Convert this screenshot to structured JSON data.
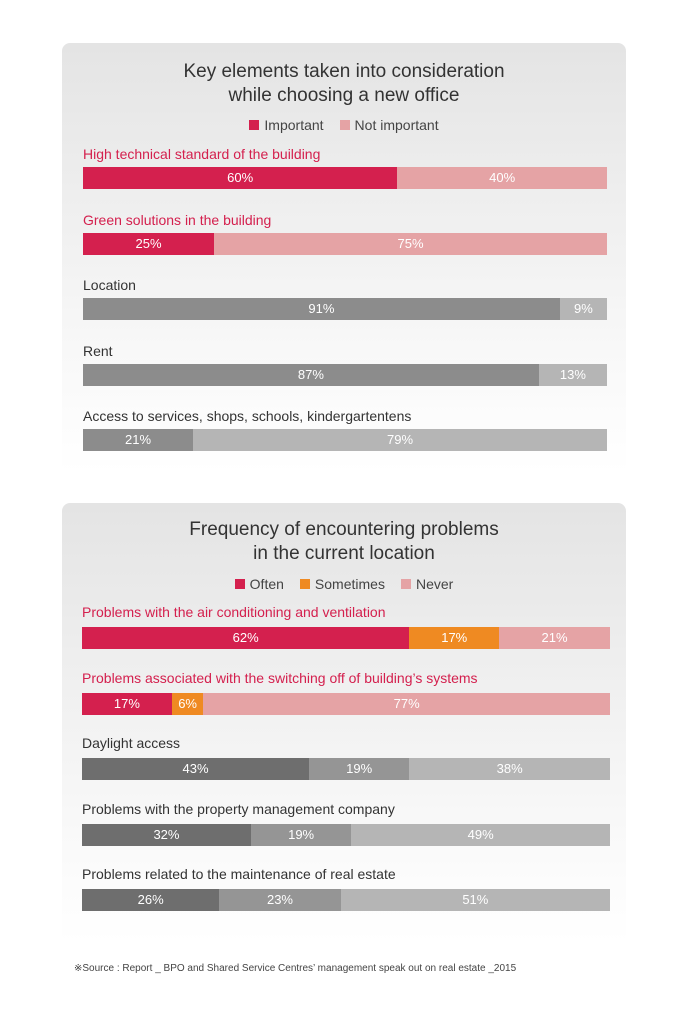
{
  "chart_data": [
    {
      "type": "bar",
      "orientation": "horizontal-stacked-percent",
      "title": [
        "Key elements taken into consideration",
        "while choosing a new office"
      ],
      "legend": {
        "position": "top-center",
        "entries": [
          "Important",
          "Not important"
        ]
      },
      "categories": [
        "High technical standard of the building",
        "Green solutions in the building",
        "Location",
        "Rent",
        "Access to services, shops, schools, kindergartentens"
      ],
      "series": [
        {
          "name": "Important",
          "values": [
            60,
            25,
            91,
            87,
            21
          ]
        },
        {
          "name": "Not important",
          "values": [
            40,
            75,
            9,
            13,
            79
          ]
        }
      ],
      "label_colors": [
        "#d4204e",
        "#d4204e",
        "#333333",
        "#333333",
        "#333333"
      ],
      "row_colors": [
        [
          "#d4204e",
          "#e5a3a5"
        ],
        [
          "#d4204e",
          "#e5a3a5"
        ],
        [
          "#8c8c8c",
          "#b5b5b5"
        ],
        [
          "#8c8c8c",
          "#b5b5b5"
        ],
        [
          "#8c8c8c",
          "#b5b5b5"
        ]
      ],
      "legend_colors": [
        "#d4204e",
        "#e5a3a5"
      ]
    },
    {
      "type": "bar",
      "orientation": "horizontal-stacked-percent",
      "title": [
        "Frequency of encountering problems",
        "in the current location"
      ],
      "legend": {
        "position": "top-center",
        "entries": [
          "Often",
          "Sometimes",
          "Never"
        ]
      },
      "categories": [
        "Problems with the air conditioning and ventilation",
        "Problems associated with the switching off of building’s systems",
        "Daylight access",
        "Problems with the property management company",
        "Problems related to the maintenance of real estate"
      ],
      "series": [
        {
          "name": "Often",
          "values": [
            62,
            17,
            43,
            32,
            26
          ]
        },
        {
          "name": "Sometimes",
          "values": [
            17,
            6,
            19,
            19,
            23
          ]
        },
        {
          "name": "Never",
          "values": [
            21,
            77,
            38,
            49,
            51
          ]
        }
      ],
      "label_colors": [
        "#d4204e",
        "#d4204e",
        "#333333",
        "#333333",
        "#333333"
      ],
      "row_colors": [
        [
          "#d4204e",
          "#ef8a22",
          "#e5a3a5"
        ],
        [
          "#d4204e",
          "#ef8a22",
          "#e5a3a5"
        ],
        [
          "#6e6e6e",
          "#959595",
          "#b5b5b5"
        ],
        [
          "#6e6e6e",
          "#959595",
          "#b5b5b5"
        ],
        [
          "#6e6e6e",
          "#959595",
          "#b5b5b5"
        ]
      ],
      "legend_colors": [
        "#d4204e",
        "#ef8a22",
        "#e5a3a5"
      ]
    }
  ],
  "source_note": "※Source : Report _ BPO and Shared Service Centres’ management speak out on real estate _2015"
}
